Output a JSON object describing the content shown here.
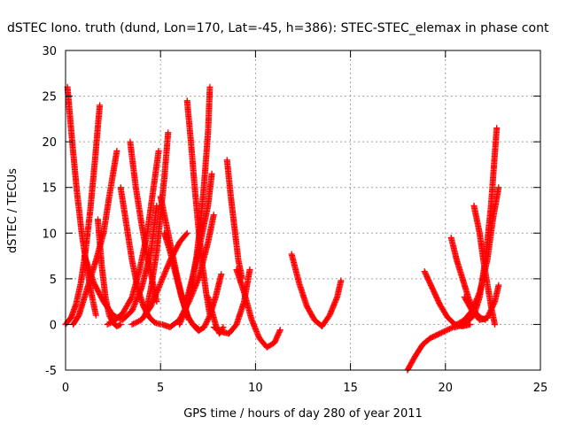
{
  "chart_data": {
    "type": "scatter",
    "title": "dSTEC Iono. truth (dund, Lon=170, Lat=-45, h=386): STEC-STEC_elemax in phase cont",
    "xlabel": "GPS time / hours of day 280 of year 2011",
    "ylabel": "dSTEC  / TECUs",
    "xlim": [
      0,
      25
    ],
    "ylim": [
      -5,
      30
    ],
    "xticks": [
      "0",
      "5",
      "10",
      "15",
      "20",
      "25"
    ],
    "yticks": [
      "-5",
      "0",
      "5",
      "10",
      "15",
      "20",
      "25",
      "30"
    ],
    "grid": true,
    "marker": "+",
    "color": "#ff0000",
    "series": [
      {
        "x": [
          0.1,
          0.35,
          0.6,
          0.85,
          1.1,
          1.35,
          1.6
        ],
        "y": [
          26,
          20,
          14.5,
          10,
          6.5,
          3.5,
          1
        ]
      },
      {
        "x": [
          0.0,
          0.3,
          0.55,
          0.8,
          1.05,
          1.3,
          1.55,
          1.8
        ],
        "y": [
          0,
          0.8,
          2.2,
          4.5,
          8,
          12.5,
          18,
          24
        ]
      },
      {
        "x": [
          1.7,
          1.9,
          2.1,
          2.3,
          2.5,
          2.7,
          2.9
        ],
        "y": [
          11.5,
          6.5,
          3,
          1,
          0.2,
          -0.2,
          0
        ]
      },
      {
        "x": [
          0.4,
          0.7,
          1.0,
          1.3,
          1.6,
          2.0,
          2.3,
          2.7
        ],
        "y": [
          0,
          1,
          3,
          5,
          7,
          10,
          14,
          19
        ]
      },
      {
        "x": [
          1.0,
          1.5,
          2.0,
          2.5,
          3.0,
          3.5,
          4.0,
          4.5,
          4.8
        ],
        "y": [
          7.5,
          4.5,
          2.5,
          1,
          0.5,
          1.5,
          4,
          8,
          13
        ]
      },
      {
        "x": [
          2.9,
          3.2,
          3.5,
          3.8,
          4.1,
          4.4,
          4.7,
          5.0
        ],
        "y": [
          15,
          11,
          7,
          4,
          2,
          0.8,
          0.2,
          0
        ]
      },
      {
        "x": [
          3.4,
          3.7,
          4.0,
          4.3,
          4.6,
          4.8
        ],
        "y": [
          20,
          15,
          11,
          7.5,
          4.5,
          2.5
        ]
      },
      {
        "x": [
          2.2,
          2.5,
          3.0,
          3.5,
          3.9,
          4.3,
          4.6,
          4.9
        ],
        "y": [
          0,
          0.3,
          1.2,
          3,
          6,
          10,
          14.5,
          19
        ]
      },
      {
        "x": [
          3.5,
          4.0,
          4.5,
          5.0,
          5.5,
          6.0,
          6.4
        ],
        "y": [
          0,
          0.5,
          2,
          4.5,
          7,
          9,
          10
        ]
      },
      {
        "x": [
          4.2,
          4.5,
          4.8,
          5.0,
          5.2,
          5.4
        ],
        "y": [
          1,
          4,
          8,
          12,
          16,
          21
        ]
      },
      {
        "x": [
          5.0,
          5.3,
          5.6,
          5.9,
          6.2,
          6.5
        ],
        "y": [
          14,
          11,
          8,
          5,
          2.5,
          0.5
        ]
      },
      {
        "x": [
          5.1,
          5.5,
          6.0,
          6.5,
          7.0,
          7.5,
          7.8
        ],
        "y": [
          0,
          -0.3,
          0.5,
          2.5,
          5,
          9,
          12
        ]
      },
      {
        "x": [
          5.2,
          5.5,
          5.8,
          6.1,
          6.4,
          6.7,
          7.0
        ],
        "y": [
          10,
          8,
          5.5,
          3,
          1,
          0,
          -0.5
        ]
      },
      {
        "x": [
          6.4,
          6.6,
          6.8,
          7.0,
          7.2,
          7.4,
          7.6
        ],
        "y": [
          24.5,
          20,
          15,
          10.5,
          6.5,
          3.5,
          1
        ]
      },
      {
        "x": [
          6.0,
          6.3,
          6.6,
          6.9,
          7.1,
          7.3,
          7.5,
          7.6
        ],
        "y": [
          0,
          1.5,
          4,
          7.5,
          11,
          15.5,
          21,
          26
        ]
      },
      {
        "x": [
          6.3,
          6.6,
          6.9,
          7.2,
          7.5,
          7.7
        ],
        "y": [
          2,
          4.5,
          7,
          10,
          13,
          16.5
        ]
      },
      {
        "x": [
          6.7,
          7.0,
          7.3,
          7.6,
          7.9,
          8.2
        ],
        "y": [
          0,
          -0.7,
          -0.3,
          1,
          3,
          5.5
        ]
      },
      {
        "x": [
          7.5,
          7.7,
          7.9,
          8.1,
          8.3
        ],
        "y": [
          3,
          1.5,
          0,
          -1,
          -0.3
        ]
      },
      {
        "x": [
          8.5,
          8.7,
          8.9,
          9.1,
          9.3
        ],
        "y": [
          18,
          14,
          10.5,
          7,
          5
        ]
      },
      {
        "x": [
          7.8,
          8.2,
          8.6,
          9.0,
          9.4,
          9.7
        ],
        "y": [
          -0.3,
          -0.8,
          -1,
          0,
          2.5,
          6
        ]
      },
      {
        "x": [
          9.0,
          9.4,
          9.8,
          10.2,
          10.6,
          11.0,
          11.3
        ],
        "y": [
          6,
          3.5,
          0.5,
          -1.5,
          -2.5,
          -2,
          -0.6
        ]
      },
      {
        "x": [
          11.9,
          12.3,
          12.7,
          13.1,
          13.5,
          13.9,
          14.3,
          14.5
        ],
        "y": [
          7.7,
          4.5,
          2,
          0.5,
          -0.2,
          1,
          3,
          4.8
        ]
      },
      {
        "x": [
          18.0,
          18.4,
          18.8,
          19.2,
          19.6,
          20.0,
          20.5
        ],
        "y": [
          -5,
          -3.5,
          -2.2,
          -1.5,
          -1.1,
          -0.7,
          -0.2
        ]
      },
      {
        "x": [
          18.9,
          19.3,
          19.7,
          20.1,
          20.5,
          20.9,
          21.3
        ],
        "y": [
          5.8,
          4,
          2.2,
          0.8,
          0,
          -0.2,
          0
        ]
      },
      {
        "x": [
          20.3,
          20.6,
          20.9,
          21.2,
          21.5,
          21.8,
          22.1
        ],
        "y": [
          9.5,
          7,
          5,
          3,
          1.5,
          0.8,
          0.5
        ]
      },
      {
        "x": [
          20.5,
          21.0,
          21.5,
          21.8,
          22.1,
          22.4,
          22.7
        ],
        "y": [
          -0.3,
          0,
          1,
          3,
          7,
          13,
          21.5
        ]
      },
      {
        "x": [
          21.5,
          21.8,
          22.0,
          22.2,
          22.4,
          22.6
        ],
        "y": [
          13,
          10,
          7,
          4.5,
          2,
          0
        ]
      },
      {
        "x": [
          20.6,
          21.0,
          21.4,
          21.8,
          22.2,
          22.5,
          22.8
        ],
        "y": [
          0,
          0.5,
          1.5,
          3.5,
          7,
          11.5,
          15
        ]
      },
      {
        "x": [
          21.0,
          21.4,
          21.8,
          22.2,
          22.6,
          22.8
        ],
        "y": [
          3,
          1.5,
          0.5,
          0.7,
          2.5,
          4.3
        ]
      }
    ]
  }
}
